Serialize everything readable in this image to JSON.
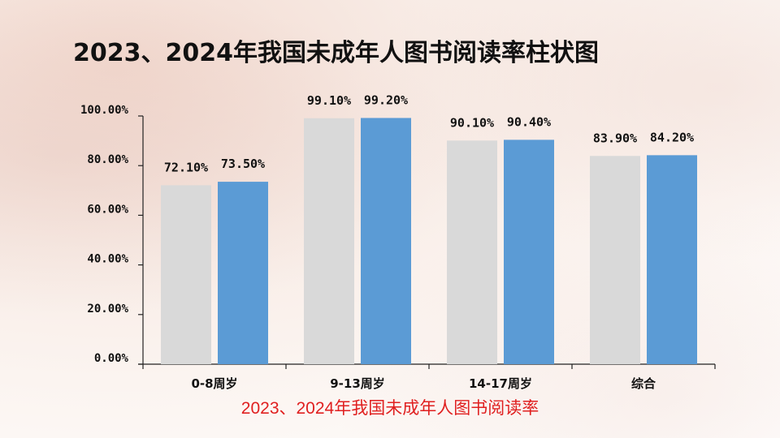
{
  "slide": {
    "title": "2023、2024年我国未成年人图书阅读率柱状图",
    "caption": "2023、2024年我国未成年人图书阅读率",
    "caption_color": "#e02020"
  },
  "chart_data": {
    "type": "bar",
    "categories": [
      "0-8周岁",
      "9-13周岁",
      "14-17周岁",
      "综合"
    ],
    "series": [
      {
        "values": [
          72.1,
          99.1,
          90.1,
          83.9
        ],
        "labels": [
          "72.10%",
          "99.10%",
          "90.10%",
          "83.90%"
        ],
        "color": "#d9d9d9"
      },
      {
        "values": [
          73.5,
          99.2,
          90.4,
          84.2
        ],
        "labels": [
          "73.50%",
          "99.20%",
          "90.40%",
          "84.20%"
        ],
        "color": "#5b9bd5"
      }
    ],
    "y_ticks": [
      {
        "value": 0,
        "label": "0.00%"
      },
      {
        "value": 20,
        "label": "20.00%"
      },
      {
        "value": 40,
        "label": "40.00%"
      },
      {
        "value": 60,
        "label": "60.00%"
      },
      {
        "value": 80,
        "label": "80.00%"
      },
      {
        "value": 100,
        "label": "100.00%"
      }
    ],
    "ylim": [
      0,
      100
    ],
    "grid": false,
    "legend": "none"
  }
}
